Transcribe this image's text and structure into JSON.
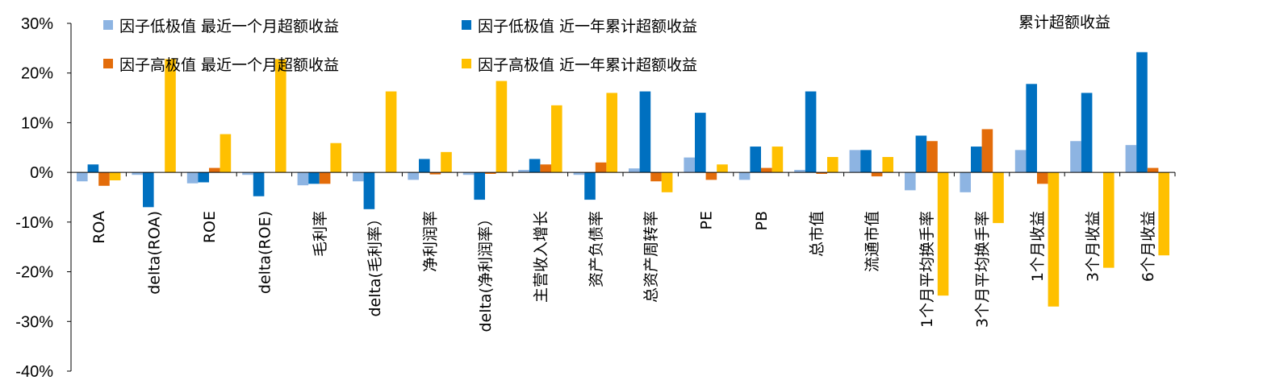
{
  "chart_data": {
    "type": "bar",
    "annotation": "累计超额收益",
    "categories": [
      "ROA",
      "delta(ROA)",
      "ROE",
      "delta(ROE)",
      "毛利率",
      "delta(毛利率）",
      "净利润率",
      "delta(净利润率）",
      "主营收入增长",
      "资产负债率",
      "总资产周转率",
      "PE",
      "PB",
      "总市值",
      "流通市值",
      "1个月平均换手率",
      "3个月平均换手率",
      "1个月收益",
      "3个月收益",
      "6个月收益"
    ],
    "series": [
      {
        "name": "因子低极值 最近一个月超额收益",
        "color": "#8db4e2",
        "values": [
          -1.8,
          -0.5,
          -2.2,
          -0.5,
          -2.6,
          -1.8,
          -1.5,
          -0.5,
          0.5,
          -0.5,
          0.8,
          3.0,
          -1.5,
          0.5,
          4.5,
          -3.6,
          -4.0,
          4.5,
          6.3,
          5.5
        ]
      },
      {
        "name": "因子低极值 近一年累计超额收益",
        "color": "#0070c0",
        "values": [
          1.6,
          -7.0,
          -2.0,
          -4.8,
          -2.3,
          -7.4,
          2.7,
          -5.5,
          2.7,
          -5.5,
          16.3,
          12.0,
          5.2,
          16.3,
          4.5,
          7.4,
          5.2,
          17.8,
          16.0,
          24.2
        ]
      },
      {
        "name": "因子高极值 最近一个月超额收益",
        "color": "#e36c0a",
        "values": [
          -2.7,
          0.0,
          0.9,
          0.0,
          -2.3,
          0.0,
          -0.4,
          -0.3,
          1.6,
          2.0,
          -1.8,
          -1.5,
          0.9,
          -0.3,
          -0.8,
          6.3,
          8.7,
          -2.3,
          0.0,
          0.9
        ]
      },
      {
        "name": "因子高极值 近一年累计超额收益",
        "color": "#ffc000",
        "values": [
          -1.6,
          22.8,
          7.7,
          22.8,
          5.9,
          16.3,
          4.1,
          18.4,
          13.5,
          16.0,
          -4.0,
          1.6,
          5.2,
          3.1,
          3.1,
          -24.8,
          -10.2,
          -27.0,
          -19.2,
          -16.7
        ]
      }
    ],
    "yticks": [
      "30%",
      "20%",
      "10%",
      "0%",
      "-10%",
      "-20%",
      "-30%",
      "-40%"
    ],
    "ylim": [
      -40,
      30
    ],
    "ylabel": "",
    "xlabel": "",
    "grid": false,
    "legend_position": "top-left"
  }
}
